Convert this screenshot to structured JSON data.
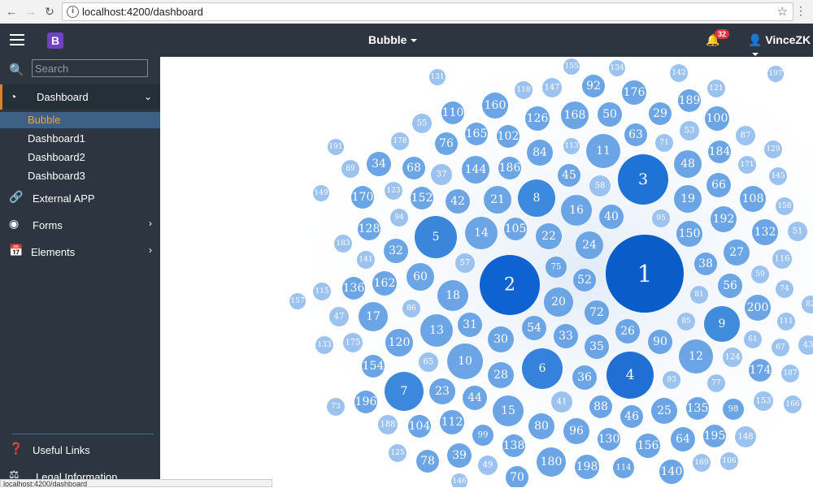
{
  "browser": {
    "url": "localhost:4200/dashboard",
    "status_url": "localhost:4200/dashboard"
  },
  "navbar": {
    "brand": "B",
    "title": "Bubble",
    "notifications": "32",
    "user": "VinceZK"
  },
  "sidebar": {
    "search_placeholder": "Search",
    "dashboard_label": "Dashboard",
    "sub_items": [
      "Bubble",
      "Dashboard1",
      "Dashboard2",
      "Dashboard3"
    ],
    "external_app": "External APP",
    "forms": "Forms",
    "elements": "Elements",
    "useful_links": "Useful Links",
    "legal_information": "Legal Information"
  },
  "colors": {
    "navbar": "#2c3540",
    "accent": "#d9822b",
    "bubble_dark": "#0a5cc9",
    "bubble_light": "#a9caef"
  },
  "chart_data": {
    "type": "bubble-pack",
    "bubbles": [
      {
        "label": "1",
        "size": 48,
        "fill": "#0a5cc9"
      },
      {
        "label": "2",
        "size": 37,
        "fill": "#0e62d1"
      },
      {
        "label": "3",
        "size": 31,
        "fill": "#2073d6"
      },
      {
        "label": "4",
        "size": 29,
        "fill": "#1f6fd5"
      },
      {
        "label": "5",
        "size": 26,
        "fill": "#3a86db"
      },
      {
        "label": "6",
        "size": 25,
        "fill": "#3482dc"
      },
      {
        "label": "7",
        "size": 24,
        "fill": "#3b88dc"
      },
      {
        "label": "8",
        "size": 23,
        "fill": "#3c89dd"
      },
      {
        "label": "9",
        "size": 22,
        "fill": "#3f8bdc"
      },
      {
        "label": "10",
        "size": 22,
        "fill": "#6ba5e6"
      },
      {
        "label": "11",
        "size": 21,
        "fill": "#6ba5e6"
      },
      {
        "label": "12",
        "size": 21,
        "fill": "#6ba5e6"
      },
      {
        "label": "13",
        "size": 20,
        "fill": "#6ba5e6"
      },
      {
        "label": "14",
        "size": 20,
        "fill": "#6ba5e6"
      },
      {
        "label": "15",
        "size": 19,
        "fill": "#6ba5e6"
      },
      {
        "label": "16",
        "size": 19,
        "fill": "#6ba5e6"
      },
      {
        "label": "17",
        "size": 18,
        "fill": "#6ba5e6"
      },
      {
        "label": "18",
        "size": 19,
        "fill": "#6ba5e6"
      },
      {
        "label": "19",
        "size": 17,
        "fill": "#6ba5e6"
      },
      {
        "label": "20",
        "size": 18,
        "fill": "#6ba5e6"
      },
      {
        "label": "21",
        "size": 17,
        "fill": "#6ba5e6"
      },
      {
        "label": "22",
        "size": 16,
        "fill": "#6ba5e6"
      },
      {
        "label": "23",
        "size": 16,
        "fill": "#6ba5e6"
      },
      {
        "label": "24",
        "size": 17,
        "fill": "#6ba5e6"
      },
      {
        "label": "25",
        "size": 16,
        "fill": "#6ba5e6"
      },
      {
        "label": "26",
        "size": 15,
        "fill": "#6ba5e6"
      },
      {
        "label": "27",
        "size": 16,
        "fill": "#6ba5e6"
      },
      {
        "label": "28",
        "size": 16,
        "fill": "#6ba5e6"
      },
      {
        "label": "29",
        "size": 14,
        "fill": "#6ba5e6"
      },
      {
        "label": "30",
        "size": 16,
        "fill": "#6ba5e6"
      },
      {
        "label": "31",
        "size": 15,
        "fill": "#6ba5e6"
      },
      {
        "label": "32",
        "size": 15,
        "fill": "#6ba5e6"
      },
      {
        "label": "33",
        "size": 15,
        "fill": "#6ba5e6"
      },
      {
        "label": "34",
        "size": 15,
        "fill": "#6ba5e6"
      },
      {
        "label": "35",
        "size": 15,
        "fill": "#6ba5e6"
      },
      {
        "label": "36",
        "size": 15,
        "fill": "#6ba5e6"
      },
      {
        "label": "37",
        "size": 13,
        "fill": "#9cc3ef"
      },
      {
        "label": "38",
        "size": 14,
        "fill": "#6ba5e6"
      },
      {
        "label": "39",
        "size": 15,
        "fill": "#6ba5e6"
      },
      {
        "label": "40",
        "size": 15,
        "fill": "#6ba5e6"
      },
      {
        "label": "41",
        "size": 13,
        "fill": "#9cc3ef"
      },
      {
        "label": "42",
        "size": 15,
        "fill": "#6ba5e6"
      },
      {
        "label": "43",
        "size": 12,
        "fill": "#9cc3ef"
      },
      {
        "label": "44",
        "size": 15,
        "fill": "#6ba5e6"
      },
      {
        "label": "45",
        "size": 14,
        "fill": "#6ba5e6"
      },
      {
        "label": "46",
        "size": 14,
        "fill": "#6ba5e6"
      },
      {
        "label": "47",
        "size": 12,
        "fill": "#9cc3ef"
      },
      {
        "label": "48",
        "size": 17,
        "fill": "#6ba5e6"
      },
      {
        "label": "49",
        "size": 12,
        "fill": "#9cc3ef"
      },
      {
        "label": "50",
        "size": 15,
        "fill": "#6ba5e6"
      },
      {
        "label": "51",
        "size": 12,
        "fill": "#9cc3ef"
      },
      {
        "label": "52",
        "size": 14,
        "fill": "#6ba5e6"
      },
      {
        "label": "53",
        "size": 12,
        "fill": "#9cc3ef"
      },
      {
        "label": "54",
        "size": 15,
        "fill": "#6ba5e6"
      },
      {
        "label": "55",
        "size": 12,
        "fill": "#9cc3ef"
      },
      {
        "label": "56",
        "size": 15,
        "fill": "#6ba5e6"
      },
      {
        "label": "57",
        "size": 12,
        "fill": "#9cc3ef"
      },
      {
        "label": "58",
        "size": 13,
        "fill": "#9cc3ef"
      },
      {
        "label": "59",
        "size": 11,
        "fill": "#9cc3ef"
      },
      {
        "label": "60",
        "size": 17,
        "fill": "#6ba5e6"
      },
      {
        "label": "61",
        "size": 11,
        "fill": "#9cc3ef"
      },
      {
        "label": "63",
        "size": 14,
        "fill": "#6ba5e6"
      },
      {
        "label": "64",
        "size": 15,
        "fill": "#6ba5e6"
      },
      {
        "label": "65",
        "size": 12,
        "fill": "#9cc3ef"
      },
      {
        "label": "66",
        "size": 15,
        "fill": "#6ba5e6"
      },
      {
        "label": "67",
        "size": 11,
        "fill": "#9cc3ef"
      },
      {
        "label": "68",
        "size": 14,
        "fill": "#6ba5e6"
      },
      {
        "label": "70",
        "size": 14,
        "fill": "#6ba5e6"
      },
      {
        "label": "71",
        "size": 11,
        "fill": "#9cc3ef"
      },
      {
        "label": "72",
        "size": 15,
        "fill": "#6ba5e6"
      },
      {
        "label": "73",
        "size": 11,
        "fill": "#9cc3ef"
      },
      {
        "label": "74",
        "size": 11,
        "fill": "#9cc3ef"
      },
      {
        "label": "75",
        "size": 13,
        "fill": "#6ba5e6"
      },
      {
        "label": "76",
        "size": 14,
        "fill": "#6ba5e6"
      },
      {
        "label": "77",
        "size": 11,
        "fill": "#9cc3ef"
      },
      {
        "label": "78",
        "size": 14,
        "fill": "#6ba5e6"
      },
      {
        "label": "80",
        "size": 16,
        "fill": "#6ba5e6"
      },
      {
        "label": "81",
        "size": 11,
        "fill": "#9cc3ef"
      },
      {
        "label": "82",
        "size": 11,
        "fill": "#9cc3ef"
      },
      {
        "label": "84",
        "size": 16,
        "fill": "#6ba5e6"
      },
      {
        "label": "85",
        "size": 11,
        "fill": "#9cc3ef"
      },
      {
        "label": "86",
        "size": 11,
        "fill": "#9cc3ef"
      },
      {
        "label": "87",
        "size": 12,
        "fill": "#9cc3ef"
      },
      {
        "label": "88",
        "size": 14,
        "fill": "#6ba5e6"
      },
      {
        "label": "89",
        "size": 11,
        "fill": "#9cc3ef"
      },
      {
        "label": "90",
        "size": 15,
        "fill": "#6ba5e6"
      },
      {
        "label": "92",
        "size": 14,
        "fill": "#6ba5e6"
      },
      {
        "label": "93",
        "size": 11,
        "fill": "#9cc3ef"
      },
      {
        "label": "94",
        "size": 11,
        "fill": "#9cc3ef"
      },
      {
        "label": "95",
        "size": 11,
        "fill": "#9cc3ef"
      },
      {
        "label": "96",
        "size": 16,
        "fill": "#6ba5e6"
      },
      {
        "label": "98",
        "size": 13,
        "fill": "#6ba5e6"
      },
      {
        "label": "99",
        "size": 13,
        "fill": "#6ba5e6"
      },
      {
        "label": "100",
        "size": 15,
        "fill": "#6ba5e6"
      },
      {
        "label": "102",
        "size": 14,
        "fill": "#6ba5e6"
      },
      {
        "label": "104",
        "size": 14,
        "fill": "#6ba5e6"
      },
      {
        "label": "105",
        "size": 14,
        "fill": "#6ba5e6"
      },
      {
        "label": "106",
        "size": 11,
        "fill": "#9cc3ef"
      },
      {
        "label": "108",
        "size": 16,
        "fill": "#6ba5e6"
      },
      {
        "label": "110",
        "size": 14,
        "fill": "#6ba5e6"
      },
      {
        "label": "111",
        "size": 11,
        "fill": "#9cc3ef"
      },
      {
        "label": "112",
        "size": 15,
        "fill": "#6ba5e6"
      },
      {
        "label": "113",
        "size": 10,
        "fill": "#9cc3ef"
      },
      {
        "label": "114",
        "size": 13,
        "fill": "#6ba5e6"
      },
      {
        "label": "115",
        "size": 11,
        "fill": "#9cc3ef"
      },
      {
        "label": "116",
        "size": 12,
        "fill": "#9cc3ef"
      },
      {
        "label": "118",
        "size": 11,
        "fill": "#9cc3ef"
      },
      {
        "label": "120",
        "size": 17,
        "fill": "#6ba5e6"
      },
      {
        "label": "121",
        "size": 11,
        "fill": "#9cc3ef"
      },
      {
        "label": "123",
        "size": 11,
        "fill": "#9cc3ef"
      },
      {
        "label": "124",
        "size": 12,
        "fill": "#9cc3ef"
      },
      {
        "label": "125",
        "size": 11,
        "fill": "#9cc3ef"
      },
      {
        "label": "126",
        "size": 15,
        "fill": "#6ba5e6"
      },
      {
        "label": "128",
        "size": 14,
        "fill": "#6ba5e6"
      },
      {
        "label": "129",
        "size": 11,
        "fill": "#9cc3ef"
      },
      {
        "label": "130",
        "size": 14,
        "fill": "#6ba5e6"
      },
      {
        "label": "131",
        "size": 10,
        "fill": "#9cc3ef"
      },
      {
        "label": "132",
        "size": 16,
        "fill": "#6ba5e6"
      },
      {
        "label": "133",
        "size": 11,
        "fill": "#9cc3ef"
      },
      {
        "label": "134",
        "size": 10,
        "fill": "#9cc3ef"
      },
      {
        "label": "135",
        "size": 14,
        "fill": "#6ba5e6"
      },
      {
        "label": "136",
        "size": 14,
        "fill": "#6ba5e6"
      },
      {
        "label": "138",
        "size": 14,
        "fill": "#6ba5e6"
      },
      {
        "label": "140",
        "size": 15,
        "fill": "#6ba5e6"
      },
      {
        "label": "141",
        "size": 11,
        "fill": "#9cc3ef"
      },
      {
        "label": "142",
        "size": 11,
        "fill": "#9cc3ef"
      },
      {
        "label": "144",
        "size": 17,
        "fill": "#6ba5e6"
      },
      {
        "label": "145",
        "size": 11,
        "fill": "#9cc3ef"
      },
      {
        "label": "146",
        "size": 10,
        "fill": "#9cc3ef"
      },
      {
        "label": "147",
        "size": 12,
        "fill": "#9cc3ef"
      },
      {
        "label": "148",
        "size": 13,
        "fill": "#9cc3ef"
      },
      {
        "label": "149",
        "size": 10,
        "fill": "#9cc3ef"
      },
      {
        "label": "150",
        "size": 16,
        "fill": "#6ba5e6"
      },
      {
        "label": "152",
        "size": 14,
        "fill": "#6ba5e6"
      },
      {
        "label": "153",
        "size": 12,
        "fill": "#9cc3ef"
      },
      {
        "label": "154",
        "size": 14,
        "fill": "#6ba5e6"
      },
      {
        "label": "155",
        "size": 10,
        "fill": "#9cc3ef"
      },
      {
        "label": "156",
        "size": 15,
        "fill": "#6ba5e6"
      },
      {
        "label": "157",
        "size": 10,
        "fill": "#9cc3ef"
      },
      {
        "label": "158",
        "size": 11,
        "fill": "#9cc3ef"
      },
      {
        "label": "160",
        "size": 16,
        "fill": "#6ba5e6"
      },
      {
        "label": "162",
        "size": 15,
        "fill": "#6ba5e6"
      },
      {
        "label": "165",
        "size": 14,
        "fill": "#6ba5e6"
      },
      {
        "label": "166",
        "size": 11,
        "fill": "#9cc3ef"
      },
      {
        "label": "168",
        "size": 17,
        "fill": "#6ba5e6"
      },
      {
        "label": "169",
        "size": 11,
        "fill": "#9cc3ef"
      },
      {
        "label": "170",
        "size": 14,
        "fill": "#6ba5e6"
      },
      {
        "label": "171",
        "size": 11,
        "fill": "#9cc3ef"
      },
      {
        "label": "174",
        "size": 14,
        "fill": "#6ba5e6"
      },
      {
        "label": "175",
        "size": 12,
        "fill": "#9cc3ef"
      },
      {
        "label": "176",
        "size": 15,
        "fill": "#6ba5e6"
      },
      {
        "label": "178",
        "size": 11,
        "fill": "#9cc3ef"
      },
      {
        "label": "180",
        "size": 18,
        "fill": "#6ba5e6"
      },
      {
        "label": "183",
        "size": 11,
        "fill": "#9cc3ef"
      },
      {
        "label": "184",
        "size": 14,
        "fill": "#6ba5e6"
      },
      {
        "label": "186",
        "size": 14,
        "fill": "#6ba5e6"
      },
      {
        "label": "187",
        "size": 11,
        "fill": "#9cc3ef"
      },
      {
        "label": "188",
        "size": 12,
        "fill": "#9cc3ef"
      },
      {
        "label": "189",
        "size": 14,
        "fill": "#6ba5e6"
      },
      {
        "label": "191",
        "size": 10,
        "fill": "#9cc3ef"
      },
      {
        "label": "192",
        "size": 16,
        "fill": "#6ba5e6"
      },
      {
        "label": "195",
        "size": 14,
        "fill": "#6ba5e6"
      },
      {
        "label": "196",
        "size": 14,
        "fill": "#6ba5e6"
      },
      {
        "label": "197",
        "size": 10,
        "fill": "#9cc3ef"
      },
      {
        "label": "198",
        "size": 15,
        "fill": "#6ba5e6"
      },
      {
        "label": "200",
        "size": 16,
        "fill": "#6ba5e6"
      }
    ]
  }
}
